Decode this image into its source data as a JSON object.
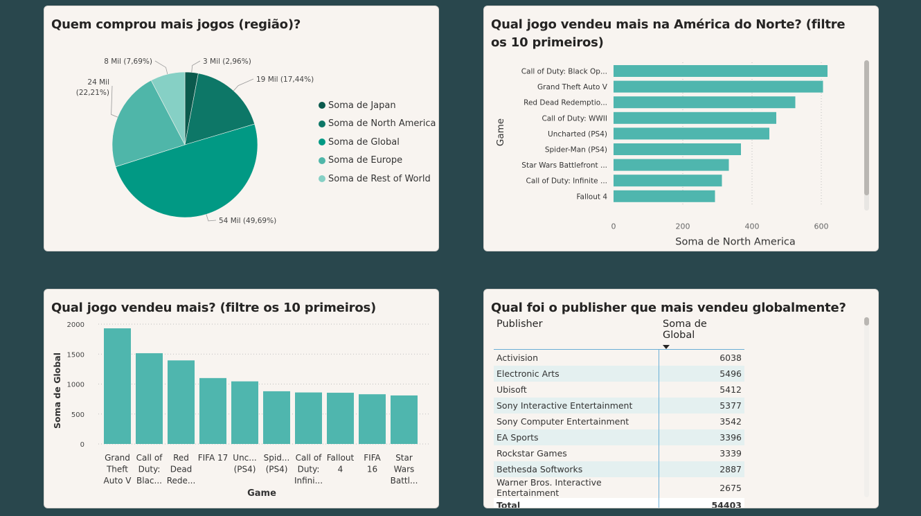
{
  "cards": {
    "region": {
      "title": "Quem comprou mais jogos (região)?",
      "legend": [
        {
          "label": "Soma de Japan",
          "color": "#0b5a4d"
        },
        {
          "label": "Soma de North America",
          "color": "#0d7767"
        },
        {
          "label": "Soma de Global",
          "color": "#019984"
        },
        {
          "label": "Soma de Europe",
          "color": "#4fb6a9"
        },
        {
          "label": "Soma de Rest of World",
          "color": "#86d0c5"
        }
      ]
    },
    "north_america": {
      "title": "Qual jogo vendeu mais na América do Norte? (filtre os 10 primeiros)"
    },
    "global_games": {
      "title": "Qual jogo vendeu mais? (filtre os 10 primeiros)"
    },
    "publisher": {
      "title": "Qual foi o publisher que mais vendeu globalmente?",
      "columns": [
        "Publisher",
        "Soma de Global"
      ],
      "sort_icon": "sort-descending-icon",
      "rows": [
        [
          "Activision",
          "6038"
        ],
        [
          "Electronic Arts",
          "5496"
        ],
        [
          "Ubisoft",
          "5412"
        ],
        [
          "Sony Interactive Entertainment",
          "5377"
        ],
        [
          "Sony Computer Entertainment",
          "3542"
        ],
        [
          "EA Sports",
          "3396"
        ],
        [
          "Rockstar Games",
          "3339"
        ],
        [
          "Bethesda Softworks",
          "2887"
        ],
        [
          "Warner Bros. Interactive Entertainment",
          "2675"
        ]
      ],
      "total_label": "Total",
      "total_value": "54403"
    }
  },
  "chart_data": [
    {
      "type": "pie",
      "categories": [
        "Soma de Japan",
        "Soma de North America",
        "Soma de Global",
        "Soma de Europe",
        "Soma de Rest of World"
      ],
      "values": [
        3,
        19,
        54,
        24,
        8
      ],
      "percentages": [
        2.96,
        17.44,
        49.69,
        22.21,
        7.69
      ],
      "data_labels": [
        "3 Mil (2,96%)",
        "19 Mil (17,44%)",
        "54 Mil (49,69%)",
        "24 Mil\n(22,21%)",
        "8 Mil (7,69%)"
      ],
      "colors": [
        "#0b5a4d",
        "#0d7767",
        "#019984",
        "#4fb6a9",
        "#86d0c5"
      ],
      "legend": "right"
    },
    {
      "type": "bar",
      "orientation": "horizontal",
      "categories": [
        "Call of Duty: Black Op...",
        "Grand Theft Auto V",
        "Red Dead Redemptio...",
        "Call of Duty: WWII",
        "Uncharted (PS4)",
        "Spider-Man (PS4)",
        "Star Wars Battlefront ...",
        "Call of Duty: Infinite ...",
        "Fallout 4"
      ],
      "values": [
        618,
        605,
        525,
        470,
        450,
        368,
        333,
        313,
        293
      ],
      "xlabel": "Soma de North America",
      "ylabel": "Game",
      "xticks": [
        "0",
        "200",
        "400",
        "600"
      ],
      "xlim": [
        0,
        650
      ],
      "color": "#4fb6ae",
      "grid": true
    },
    {
      "type": "bar",
      "orientation": "vertical",
      "categories": [
        [
          "Grand",
          "Theft",
          "Auto V"
        ],
        [
          "Call of",
          "Duty:",
          "Blac..."
        ],
        [
          "Red",
          "Dead",
          "Rede..."
        ],
        [
          "FIFA 17"
        ],
        [
          "Unc...",
          "(PS4)"
        ],
        [
          "Spid...",
          "(PS4)"
        ],
        [
          "Call of",
          "Duty:",
          "Infini..."
        ],
        [
          "Fallout",
          "4"
        ],
        [
          "FIFA",
          "16"
        ],
        [
          "Star",
          "Wars",
          "Battl..."
        ]
      ],
      "values": [
        1930,
        1515,
        1395,
        1100,
        1045,
        880,
        860,
        855,
        830,
        810
      ],
      "xlabel": "Game",
      "ylabel": "Soma de Global",
      "yticks": [
        "0",
        "500",
        "1000",
        "1500",
        "2000"
      ],
      "ylim": [
        0,
        2000
      ],
      "color": "#4fb6ae",
      "grid": true
    }
  ]
}
